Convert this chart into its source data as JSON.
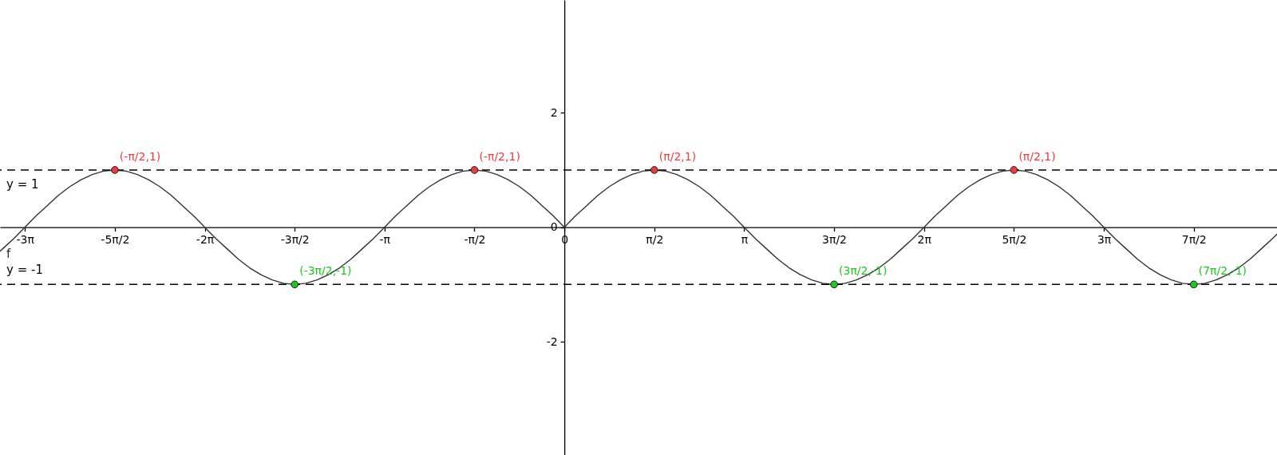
{
  "chart_data": {
    "type": "line",
    "xlim": [
      -9.86,
      12.45
    ],
    "ylim": [
      -3.98,
      3.97
    ],
    "xticks": [
      {
        "value": -9.425,
        "label": "-3π"
      },
      {
        "value": -7.854,
        "label": "-5π/2"
      },
      {
        "value": -6.283,
        "label": "-2π"
      },
      {
        "value": -4.712,
        "label": "-3π/2"
      },
      {
        "value": -3.142,
        "label": "-π"
      },
      {
        "value": -1.571,
        "label": "-π/2"
      },
      0,
      {
        "value": 1.571,
        "label": "π/2"
      },
      {
        "value": 3.142,
        "label": "π"
      },
      {
        "value": 4.712,
        "label": "3π/2"
      },
      {
        "value": 6.283,
        "label": "2π"
      },
      {
        "value": 7.854,
        "label": "5π/2"
      },
      {
        "value": 9.425,
        "label": "3π"
      },
      {
        "value": 10.996,
        "label": "7π/2"
      }
    ],
    "yticks": [
      -2,
      0,
      2
    ],
    "grid": false,
    "series": [
      {
        "name": "f",
        "color": "#333333",
        "marker": "none",
        "line_style": "solid",
        "x": [
          -9.86,
          -9.817,
          -9.621,
          -9.425,
          -9.228,
          -9.032,
          -8.836,
          -8.639,
          -8.443,
          -8.247,
          -8.05,
          -7.854,
          -7.658,
          -7.461,
          -7.265,
          -7.069,
          -6.872,
          -6.676,
          -6.48,
          -6.283,
          -6.087,
          -5.89,
          -5.694,
          -5.498,
          -5.301,
          -5.105,
          -4.909,
          -4.712,
          -4.516,
          -4.32,
          -4.123,
          -3.927,
          -3.731,
          -3.534,
          -3.338,
          -3.142,
          -2.945,
          -2.749,
          -2.553,
          -2.356,
          -2.16,
          -1.963,
          -1.767,
          -1.571,
          -1.374,
          -1.178,
          -0.982,
          -0.785,
          -0.589,
          -0.393,
          -0.196,
          0,
          0.196,
          0.393,
          0.589,
          0.785,
          0.982,
          1.178,
          1.374,
          1.571,
          1.767,
          1.963,
          2.16,
          2.356,
          2.553,
          2.749,
          2.945,
          3.142,
          3.338,
          3.534,
          3.731,
          3.927,
          4.123,
          4.32,
          4.516,
          4.712,
          4.909,
          5.105,
          5.301,
          5.498,
          5.694,
          5.89,
          6.087,
          6.283,
          6.48,
          6.676,
          6.872,
          7.069,
          7.265,
          7.461,
          7.658,
          7.854,
          8.05,
          8.247,
          8.443,
          8.639,
          8.836,
          9.032,
          9.228,
          9.425,
          9.621,
          9.817,
          10.014,
          10.21,
          10.407,
          10.603,
          10.799,
          10.996,
          11.192,
          11.388,
          11.585,
          11.781,
          11.977,
          12.174,
          12.37,
          12.45
        ],
        "values": [
          -0.42,
          -0.38,
          -0.2,
          0,
          0.2,
          0.38,
          0.56,
          0.71,
          0.83,
          0.92,
          0.98,
          1,
          0.98,
          0.92,
          0.83,
          0.71,
          0.56,
          0.38,
          0.2,
          0,
          -0.2,
          -0.38,
          -0.56,
          -0.71,
          -0.83,
          -0.92,
          -0.98,
          -1,
          -0.98,
          -0.92,
          -0.83,
          -0.71,
          -0.56,
          -0.38,
          -0.2,
          0,
          0.2,
          0.38,
          0.56,
          0.71,
          0.83,
          0.92,
          0.98,
          1,
          0.98,
          0.92,
          0.83,
          0.71,
          0.56,
          0.38,
          0.2,
          0,
          0.2,
          0.38,
          0.56,
          0.71,
          0.83,
          0.92,
          0.98,
          1,
          0.98,
          0.92,
          0.83,
          0.71,
          0.56,
          0.38,
          0.2,
          0,
          -0.2,
          -0.38,
          -0.56,
          -0.71,
          -0.83,
          -0.92,
          -0.98,
          -1,
          -0.98,
          -0.92,
          -0.83,
          -0.71,
          -0.56,
          -0.38,
          -0.2,
          0,
          0.2,
          0.38,
          0.56,
          0.71,
          0.83,
          0.92,
          0.98,
          1,
          0.98,
          0.92,
          0.83,
          0.71,
          0.56,
          0.38,
          0.2,
          0,
          -0.2,
          -0.38,
          -0.56,
          -0.71,
          -0.83,
          -0.92,
          -0.98,
          -1,
          -0.98,
          -0.92,
          -0.83,
          -0.71,
          -0.56,
          -0.38,
          -0.2,
          -0.12
        ]
      },
      {
        "type": "scatter",
        "color": "#ee3b3b",
        "marker": "circle",
        "x": [
          -7.854,
          -1.571,
          1.571,
          7.854
        ],
        "values": [
          1,
          1,
          1,
          1
        ]
      },
      {
        "type": "scatter",
        "color": "#1ec81e",
        "marker": "circle",
        "x": [
          -4.712,
          4.712,
          10.996
        ],
        "values": [
          -1,
          -1,
          -1
        ]
      }
    ],
    "ref_lines": [
      {
        "axis": "y",
        "value": 1,
        "label": "y = 1",
        "color": "#000000",
        "line_style": "dashed"
      },
      {
        "axis": "y",
        "value": -1,
        "label": "y = -1",
        "color": "#000000",
        "line_style": "dashed"
      }
    ],
    "annotations": [
      {
        "text": "(-π/2,1)",
        "x": -7.854,
        "y": 1
      },
      {
        "text": "(-π/2,1)",
        "x": -1.571,
        "y": 1
      },
      {
        "text": "(π/2,1)",
        "x": 1.571,
        "y": 1
      },
      {
        "text": "(π/2,1)",
        "x": 7.854,
        "y": 1
      },
      {
        "text": "(-3π/2,-1)",
        "x": -4.712,
        "y": -1
      },
      {
        "text": "(3π/2,-1)",
        "x": 4.712,
        "y": -1
      },
      {
        "text": "(7π/2,-1)",
        "x": 10.996,
        "y": -1
      }
    ]
  }
}
